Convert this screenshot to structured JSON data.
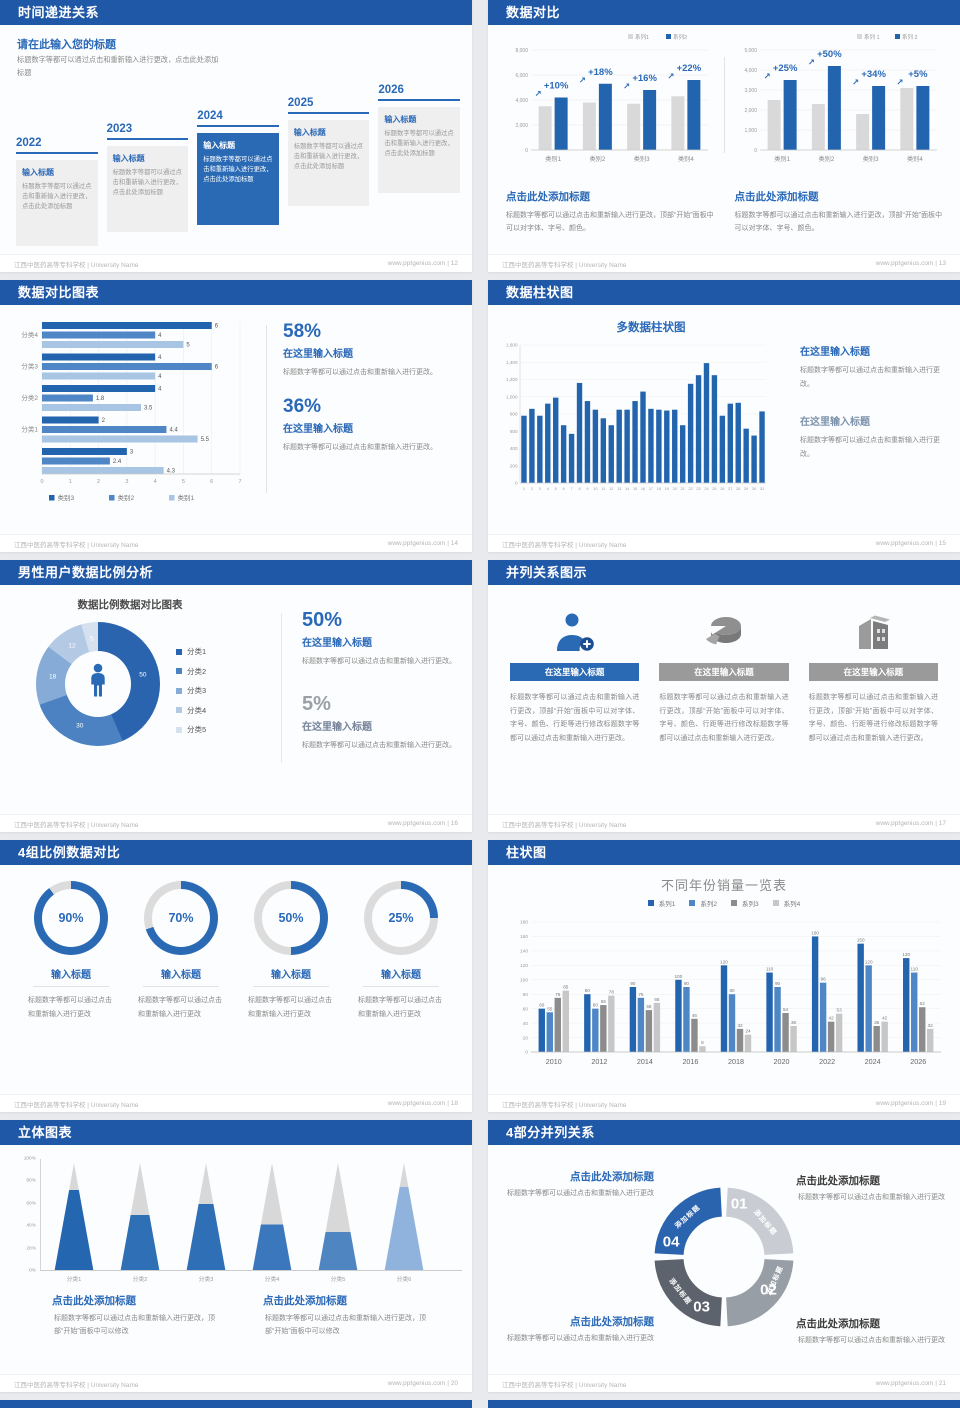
{
  "colors": {
    "header_blue": "#2058a8",
    "accent_blue": "#2a69b8",
    "bar_dark": "#2264ae",
    "bar_mid": "#4e86c6",
    "bar_light": "#a8c5e4",
    "bar_gray": "#d9d9d9",
    "series_gray": "#8c8c8c",
    "series_gray_light": "#c7c7c7"
  },
  "footer": {
    "school": "江西中医药高等专科学校 | University Name",
    "url": "www.pptgenius.com"
  },
  "slides": [
    {
      "page": "12",
      "title": "时间递进关系",
      "heading": "请在此输入您的标题",
      "intro": "标题数字等都可以通过点击和重新输入进行更改，点击此处添加标题",
      "step_label": "输入标题",
      "step_body": "标题数字等都可以通过点击和重新输入进行更改，点击此处添加标题",
      "years": [
        "2022",
        "2023",
        "2024",
        "2025",
        "2026"
      ]
    },
    {
      "page": "13",
      "title": "数据对比",
      "heading": "点击此处添加标题",
      "body": "标题数字等都可以通过点击和重新输入进行更改，顶部“开始”面板中可以对字体、字号、颜色。",
      "charts": [
        {
          "type": "bar",
          "legend": [
            "系列1",
            "系列2"
          ],
          "ymax": 8000,
          "yticks": [
            "8,000",
            "6,000",
            "4,000",
            "2,000",
            "0"
          ],
          "cats": [
            "类别1",
            "类别2",
            "类别3",
            "类别4"
          ],
          "gray": [
            3500,
            3800,
            3700,
            4300
          ],
          "blue": [
            4200,
            5300,
            4800,
            5600
          ],
          "deltas": [
            "+10%",
            "+18%",
            "+16%",
            "+22%"
          ]
        },
        {
          "type": "bar",
          "legend": [
            "系列 1",
            "系列 2"
          ],
          "ymax": 5000,
          "yticks": [
            "5,000",
            "4,000",
            "3,000",
            "2,000",
            "1,000",
            "0"
          ],
          "cats": [
            "类别1",
            "类别2",
            "类别3",
            "类别4"
          ],
          "gray": [
            2500,
            2300,
            1800,
            3100
          ],
          "blue": [
            3500,
            4200,
            3200,
            3200
          ],
          "deltas": [
            "+25%",
            "+50%",
            "+34%",
            "+5%"
          ]
        }
      ]
    },
    {
      "page": "14",
      "title": "数据对比图表",
      "chart": {
        "type": "bar-horizontal",
        "xmax": 7,
        "xticks": [
          "0",
          "1",
          "2",
          "3",
          "4",
          "5",
          "6",
          "7"
        ],
        "legend": [
          "类别3",
          "类别2",
          "类别1"
        ],
        "groups": [
          {
            "label": "分类4",
            "values": [
              6,
              4,
              5
            ]
          },
          {
            "label": "分类3",
            "values": [
              4,
              6,
              4
            ]
          },
          {
            "label": "分类2",
            "values": [
              4,
              1.8,
              3.5
            ]
          },
          {
            "label": "分类1",
            "values": [
              2,
              4.4,
              5.5
            ]
          },
          {
            "label": "",
            "values": [
              3,
              2.4,
              4.3
            ]
          }
        ]
      },
      "stats": [
        {
          "pct": "58%",
          "head": "在这里输入标题",
          "body": "标题数字等都可以通过点击和重新输入进行更改。"
        },
        {
          "pct": "36%",
          "head": "在这里输入标题",
          "body": "标题数字等都可以通过点击和重新输入进行更改。"
        }
      ]
    },
    {
      "page": "15",
      "title": "数据柱状图",
      "chart": {
        "type": "bar",
        "title": "多数据柱状图",
        "ymax": 1600,
        "yticks": [
          "1,600",
          "1,400",
          "1,200",
          "1,000",
          "800",
          "600",
          "400",
          "200",
          "0"
        ],
        "xlabels": [
          "1",
          "2",
          "3",
          "4",
          "5",
          "6",
          "7",
          "8",
          "9",
          "10",
          "11",
          "12",
          "13",
          "14",
          "15",
          "16",
          "17",
          "18",
          "19",
          "20",
          "21",
          "22",
          "23",
          "24",
          "25",
          "26",
          "27",
          "28",
          "29",
          "30",
          "31"
        ],
        "values": [
          780,
          860,
          780,
          920,
          990,
          670,
          570,
          1160,
          950,
          850,
          750,
          670,
          850,
          850,
          950,
          1060,
          860,
          850,
          840,
          850,
          670,
          1150,
          1250,
          1390,
          1250,
          780,
          920,
          930,
          630,
          550,
          830
        ]
      },
      "blocks": [
        {
          "head": "在这里输入标题",
          "body": "标题数字等都可以通过点击和重新输入进行更改。"
        },
        {
          "head": "在这里输入标题",
          "body": "标题数字等都可以通过点击和重新输入进行更改。"
        }
      ]
    },
    {
      "page": "16",
      "title": "男性用户数据比例分析",
      "chart": {
        "type": "pie",
        "title": "数据比例数据对比图表",
        "values": [
          50,
          30,
          18,
          12,
          5
        ],
        "legend": [
          "分类1",
          "分类2",
          "分类3",
          "分类4",
          "分类5"
        ],
        "colors": [
          "#2a64ae",
          "#4d82c2",
          "#86abd6",
          "#b3c9e4",
          "#d6e1ef"
        ]
      },
      "stats": [
        {
          "pct": "50%",
          "head": "在这里输入标题",
          "body": "标题数字等都可以通过点击和重新输入进行更改。"
        },
        {
          "pct": "5%",
          "head": "在这里输入标题",
          "body": "标题数字等都可以通过点击和重新输入进行更改。"
        }
      ]
    },
    {
      "page": "17",
      "title": "并列关系图示",
      "cols": [
        {
          "icon": "person-plus-icon",
          "title": "在这里输入标题",
          "body": "标题数字等都可以通过点击和重新输入进行更改，顶部“开始”面板中可以对字体、字号、颜色、行距等进行修改标题数字等都可以通过点击和重新输入进行更改。"
        },
        {
          "icon": "pie-icon",
          "title": "在这里输入标题",
          "body": "标题数字等都可以通过点击和重新输入进行更改，顶部“开始”面板中可以对字体、字号、颜色、行距等进行修改标题数字等都可以通过点击和重新输入进行更改。"
        },
        {
          "icon": "building-icon",
          "title": "在这里输入标题",
          "body": "标题数字等都可以通过点击和重新输入进行更改，顶部“开始”面板中可以对字体、字号、颜色、行距等进行修改标题数字等都可以通过点击和重新输入进行更改。"
        }
      ]
    },
    {
      "page": "18",
      "title": "4组比例数据对比",
      "rings": [
        {
          "pct": 90,
          "pct_label": "90%",
          "head": "输入标题",
          "body": "标题数字等都可以通过点击和重新输入进行更改"
        },
        {
          "pct": 70,
          "pct_label": "70%",
          "head": "输入标题",
          "body": "标题数字等都可以通过点击和重新输入进行更改"
        },
        {
          "pct": 50,
          "pct_label": "50%",
          "head": "输入标题",
          "body": "标题数字等都可以通过点击和重新输入进行更改"
        },
        {
          "pct": 25,
          "pct_label": "25%",
          "head": "输入标题",
          "body": "标题数字等都可以通过点击和重新输入进行更改"
        }
      ]
    },
    {
      "page": "19",
      "title": "柱状图",
      "chart": {
        "type": "bar",
        "title": "不同年份销量一览表",
        "legend": [
          "系列1",
          "系列2",
          "系列3",
          "系列4"
        ],
        "ymax": 180,
        "yticks": [
          "180",
          "160",
          "140",
          "120",
          "100",
          "80",
          "60",
          "40",
          "20",
          "0"
        ],
        "years": [
          "2010",
          "2012",
          "2014",
          "2016",
          "2018",
          "2020",
          "2022",
          "2024",
          "2026"
        ],
        "series": [
          [
            60,
            80,
            90,
            100,
            120,
            110,
            160,
            150,
            130
          ],
          [
            55,
            60,
            75,
            90,
            80,
            90,
            96,
            120,
            110
          ],
          [
            75,
            65,
            58,
            46,
            32,
            54,
            42,
            36,
            62
          ],
          [
            85,
            78,
            68,
            8,
            24,
            36,
            53,
            42,
            32
          ]
        ]
      }
    },
    {
      "page": "20",
      "title": "立体图表",
      "chart": {
        "type": "cone",
        "yticks": [
          "100%",
          "80%",
          "60%",
          "40%",
          "20%",
          "0%"
        ],
        "cats": [
          "分类1",
          "分类2",
          "分类3",
          "分类4",
          "分类5",
          "分类6"
        ],
        "values": [
          75,
          52,
          62,
          43,
          36,
          78
        ],
        "colors": [
          "#2566b0",
          "#2e6fb6",
          "#2e6fb6",
          "#3a77bc",
          "#4f86c2",
          "#8fb3dc"
        ]
      },
      "blocks": [
        {
          "head": "点击此处添加标题",
          "body": "标题数字等都可以通过点击和重新输入进行更改，顶部“开始”面板中可以修改"
        },
        {
          "head": "点击此处添加标题",
          "body": "标题数字等都可以通过点击和重新输入进行更改，顶部“开始”面板中可以修改"
        }
      ]
    },
    {
      "page": "21",
      "title": "4部分并列关系",
      "segments": [
        {
          "num": "01",
          "label": "添加标题",
          "color": "#c9cdd3"
        },
        {
          "num": "02",
          "label": "添加标题",
          "color": "#989ea6"
        },
        {
          "num": "03",
          "label": "添加标题",
          "color": "#5d636d"
        },
        {
          "num": "04",
          "label": "添加标题",
          "color": "#2a64ae"
        }
      ],
      "corners": [
        {
          "head": "点击此处添加标题",
          "body": "标题数字等都可以通过点击和重新输入进行更改",
          "accent": true
        },
        {
          "head": "点击此处添加标题",
          "body": "标题数字等都可以通过点击和重新输入进行更改",
          "accent": false
        },
        {
          "head": "点击此处添加标题",
          "body": "标题数字等都可以通过点击和重新输入进行更改",
          "accent": true
        },
        {
          "head": "点击此处添加标题",
          "body": "标题数字等都可以通过点击和重新输入进行更改",
          "accent": false
        }
      ]
    }
  ]
}
